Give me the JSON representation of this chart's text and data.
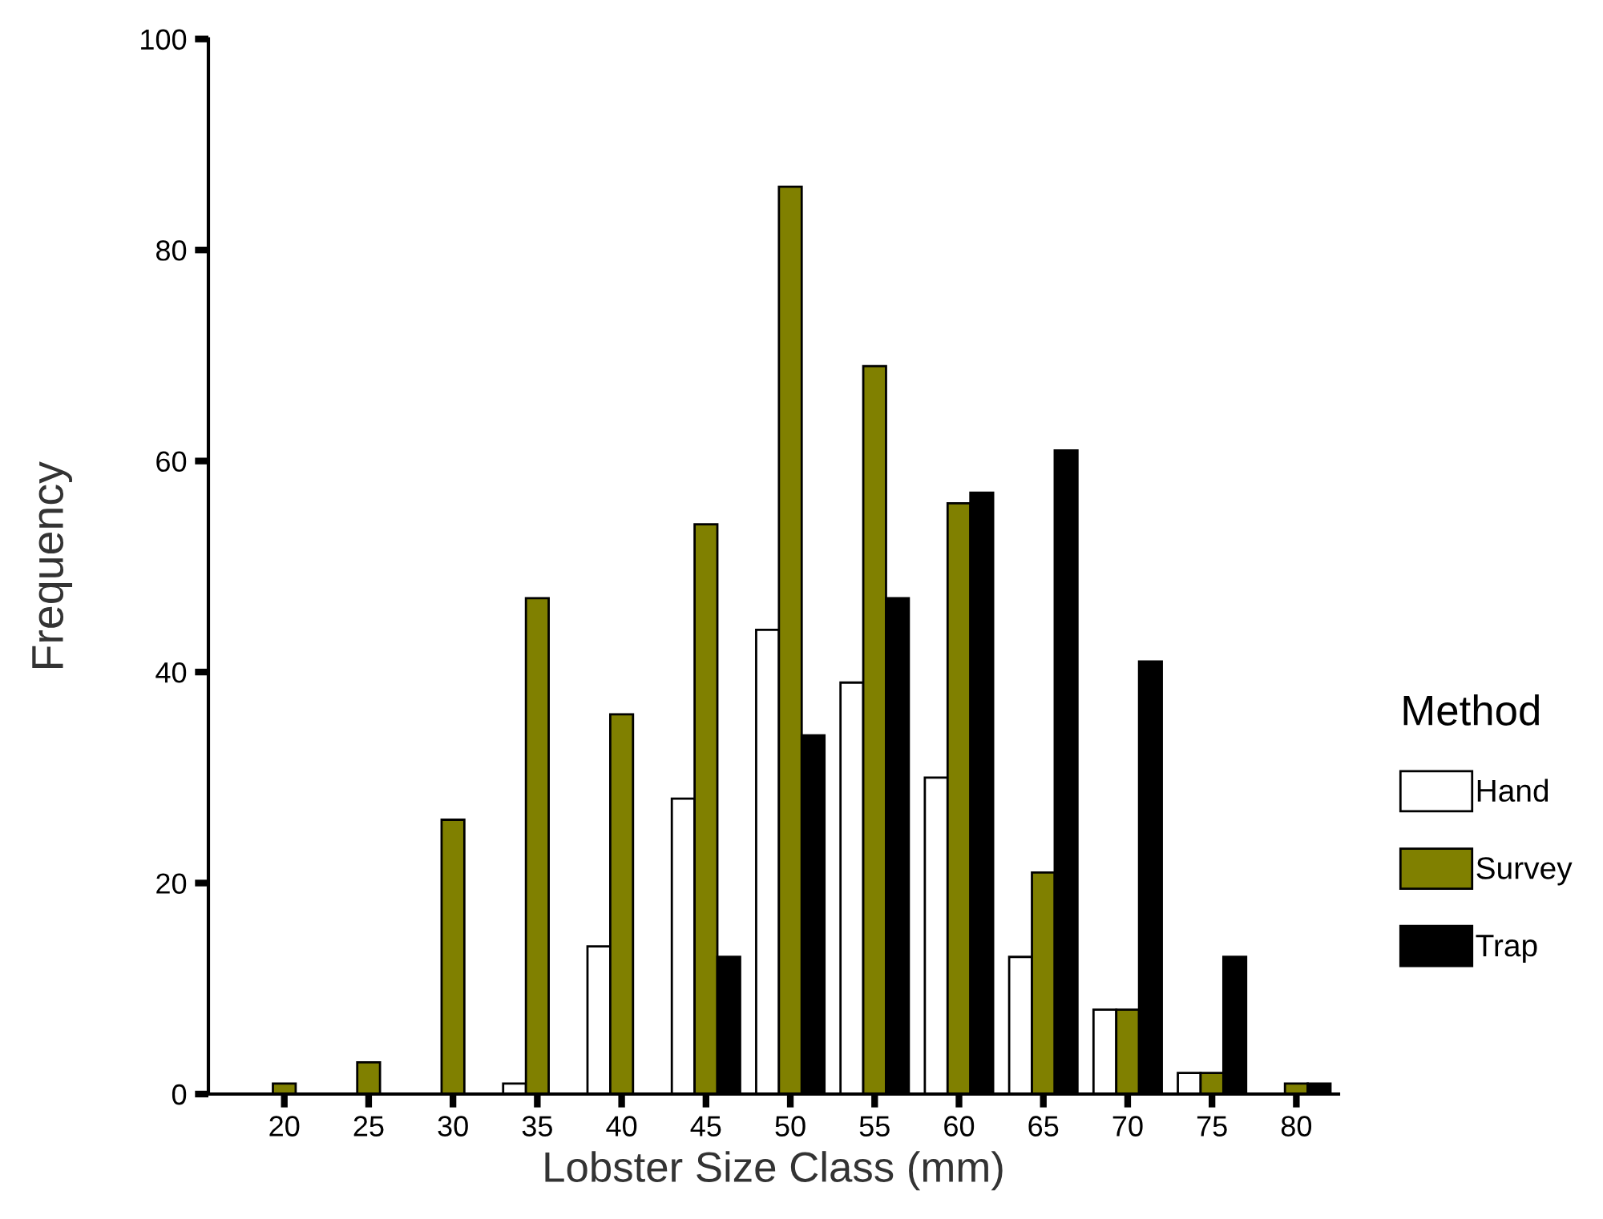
{
  "chart_data": {
    "type": "bar",
    "xlabel": "Lobster Size Class (mm)",
    "ylabel": "Frequency",
    "legend_title": "Method",
    "categories": [
      "20",
      "25",
      "30",
      "35",
      "40",
      "45",
      "50",
      "55",
      "60",
      "65",
      "70",
      "75",
      "80"
    ],
    "series": [
      {
        "name": "Hand",
        "color": "#ffffff",
        "values": [
          null,
          null,
          null,
          1,
          14,
          28,
          44,
          39,
          30,
          13,
          8,
          2,
          null
        ]
      },
      {
        "name": "Survey",
        "color": "#808000",
        "values": [
          1,
          3,
          26,
          47,
          36,
          54,
          86,
          69,
          56,
          21,
          8,
          2,
          1
        ]
      },
      {
        "name": "Trap",
        "color": "#000000",
        "values": [
          null,
          null,
          null,
          null,
          null,
          13,
          34,
          47,
          57,
          61,
          41,
          13,
          1
        ]
      }
    ],
    "ylim": [
      0,
      100
    ],
    "yticks": [
      0,
      20,
      40,
      60,
      80,
      100
    ],
    "grid": false,
    "legend": "right"
  }
}
